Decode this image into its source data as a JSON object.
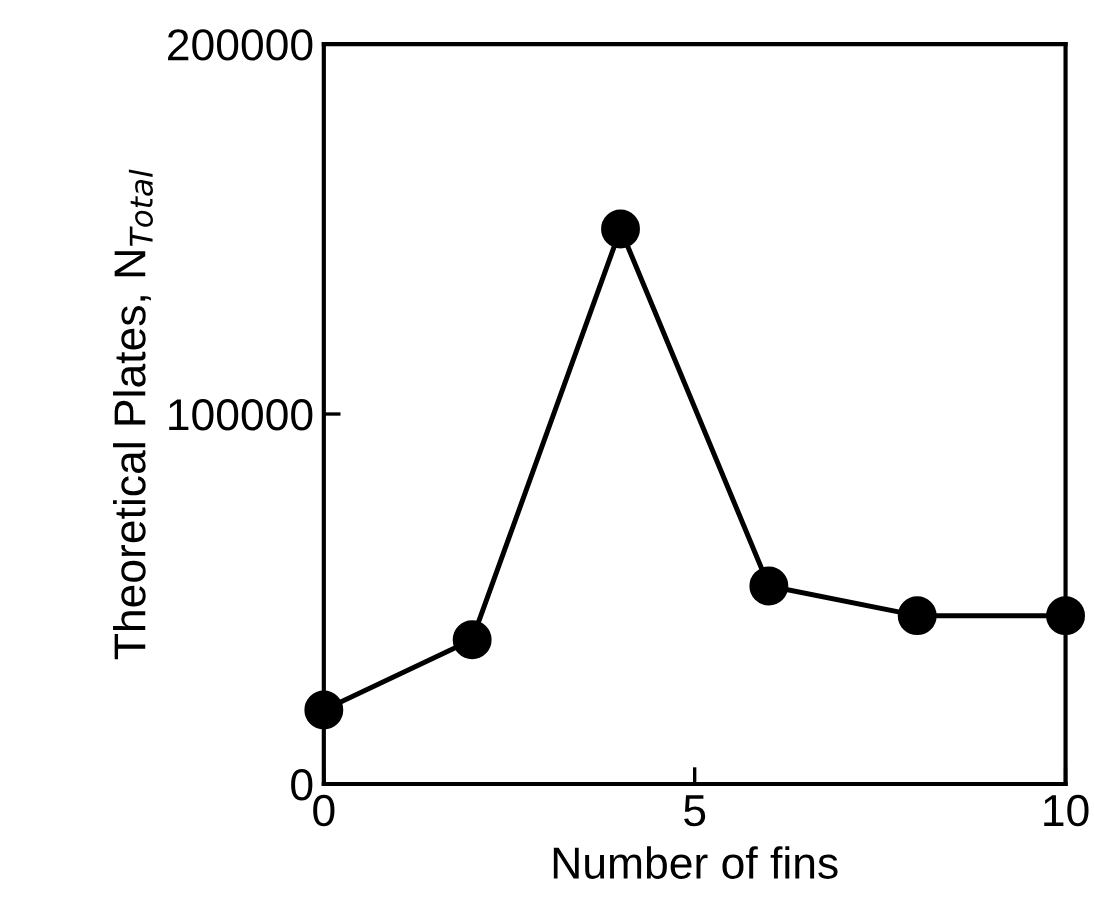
{
  "chart_data": {
    "type": "line",
    "xlabel": "Number of fins",
    "ylabel": "Theoretical Plates, N$_{Total}$",
    "x": [
      0,
      2,
      4,
      6,
      8,
      10
    ],
    "series": [
      {
        "color": "#000000",
        "values": [
          20000,
          39000,
          150000,
          53500,
          45500,
          45500
        ]
      }
    ],
    "xlim": [
      0,
      10
    ],
    "xticks": [
      0,
      5,
      10
    ],
    "ylim": [
      0,
      200000
    ],
    "yticks": [
      0,
      100000,
      200000
    ],
    "marker": "circle",
    "line_style": "solid",
    "grid": false,
    "legend": false
  }
}
